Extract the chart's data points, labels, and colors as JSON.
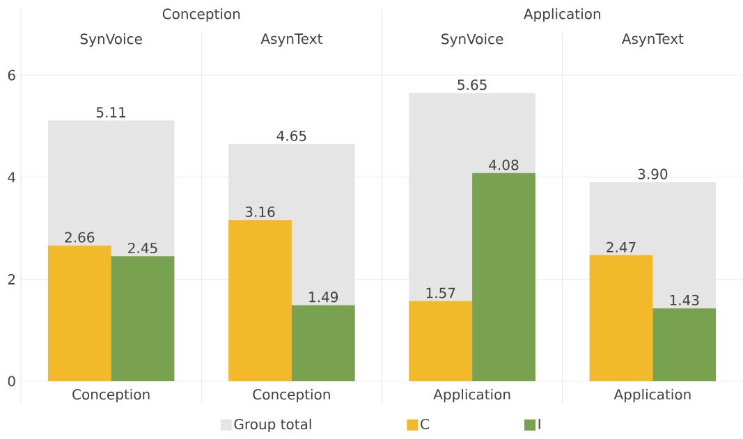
{
  "chart_data": {
    "type": "bar",
    "categories": [
      "Conception",
      "Conception",
      "Application",
      "Application"
    ],
    "series": [
      {
        "name": "Group total",
        "color": "#e5e5e5",
        "values": [
          5.11,
          4.65,
          5.65,
          3.9
        ],
        "value_labels": [
          "5.11",
          "4.65",
          "5.65",
          "3.90"
        ]
      },
      {
        "name": "C",
        "color": "#f2b92b",
        "values": [
          2.66,
          3.16,
          1.57,
          2.47
        ],
        "value_labels": [
          "2.66",
          "3.16",
          "1.57",
          "2.47"
        ]
      },
      {
        "name": "I",
        "color": "#78a24f",
        "values": [
          2.45,
          1.49,
          4.08,
          1.43
        ],
        "value_labels": [
          "2.45",
          "1.49",
          "4.08",
          "1.43"
        ]
      }
    ],
    "ylim": [
      0,
      7.3
    ],
    "yticks": [
      0,
      2,
      4,
      6
    ],
    "grid": "y",
    "legend": "bottom",
    "annotations": [
      "Conception",
      "Application",
      "SynVoice",
      "AsynText",
      "SynVoice",
      "AsynText"
    ]
  }
}
